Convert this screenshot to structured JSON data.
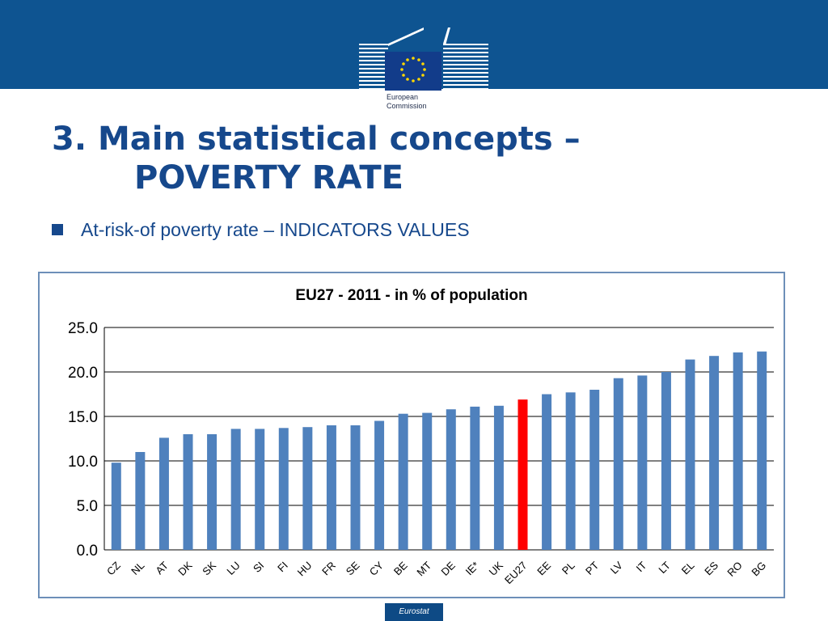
{
  "header": {
    "logo_name": "eu-commission-logo",
    "logo_line1": "European",
    "logo_line2": "Commission"
  },
  "slide": {
    "title_line1": "3. Main statistical concepts –",
    "title_line2": "POVERTY RATE",
    "bullet": "At-risk-of poverty rate – INDICATORS VALUES"
  },
  "chart_data": {
    "type": "bar",
    "title": "EU27 - 2011 - in % of population",
    "categories": [
      "CZ",
      "NL",
      "AT",
      "DK",
      "SK",
      "LU",
      "SI",
      "FI",
      "HU",
      "FR",
      "SE",
      "CY",
      "BE",
      "MT",
      "DE",
      "IE*",
      "UK",
      "EU27",
      "EE",
      "PL",
      "PT",
      "LV",
      "IT",
      "LT",
      "EL",
      "ES",
      "RO",
      "BG"
    ],
    "values": [
      9.8,
      11.0,
      12.6,
      13.0,
      13.0,
      13.6,
      13.6,
      13.7,
      13.8,
      14.0,
      14.0,
      14.5,
      15.3,
      15.4,
      15.8,
      16.1,
      16.2,
      16.9,
      17.5,
      17.7,
      18.0,
      19.3,
      19.6,
      20.0,
      21.4,
      21.8,
      22.2,
      22.3
    ],
    "highlight_category": "EU27",
    "bar_color": "#4f81bd",
    "highlight_color": "#ff0000",
    "ylim": [
      0,
      25
    ],
    "yticks": [
      "0.0",
      "5.0",
      "10.0",
      "15.0",
      "20.0",
      "25.0"
    ],
    "grid": true,
    "xlabel": "",
    "ylabel": ""
  },
  "footer": {
    "label": "Eurostat"
  }
}
